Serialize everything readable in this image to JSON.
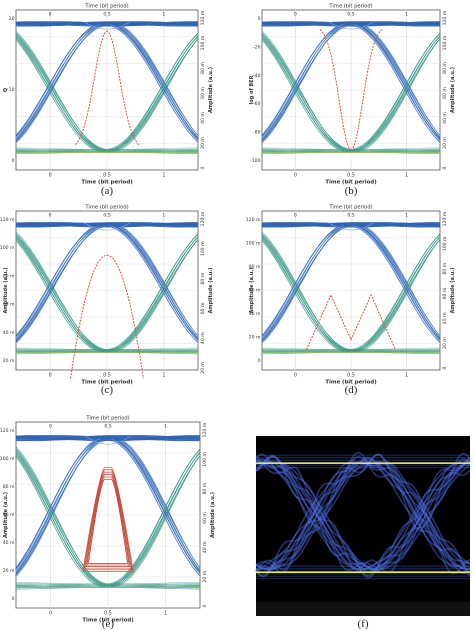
{
  "chart_data": [
    {
      "type": "line",
      "caption": "(a)",
      "top_title": "Time (bit period)",
      "xlabel": "Time (bit period)",
      "ylabel": "Q",
      "right_label": "Amplitude (a.u.)",
      "x_ticks": [
        "0",
        "0.5",
        "1"
      ],
      "top_ticks": [
        "0",
        "0.5",
        "1"
      ],
      "left_ticks": [
        "20",
        "10",
        "0"
      ],
      "right_ticks": [
        "120 m",
        "100 m",
        "80 m",
        "60 m",
        "40 m",
        "20 m",
        "0"
      ],
      "overlay": "q"
    },
    {
      "type": "line",
      "caption": "(b)",
      "top_title": "Time (bit period)",
      "xlabel": "Time (bit period)",
      "ylabel": "log of BER",
      "right_label": "Amplitude (a.u.)",
      "x_ticks": [
        "0",
        "0.5",
        "1"
      ],
      "top_ticks": [
        "0",
        "0.5",
        "1"
      ],
      "left_ticks": [
        "0",
        "-20",
        "-40",
        "-60",
        "-80",
        "-100"
      ],
      "right_ticks": [
        "120 m",
        "100 m",
        "80 m",
        "60 m",
        "40 m",
        "20 m",
        "0"
      ],
      "overlay": "ber"
    },
    {
      "type": "line",
      "caption": "(c)",
      "top_title": "Time (bit period)",
      "xlabel": "Time (bit period)",
      "ylabel": "Amplitude (a.u.)",
      "right_label": "Amplitude (a.u.)",
      "x_ticks": [
        "0",
        "0.5",
        "1"
      ],
      "top_ticks": [
        "0",
        "0.5",
        "1"
      ],
      "left_ticks": [
        "120 m",
        "100 m",
        "80 m",
        "60 m",
        "40 m",
        "20 m"
      ],
      "right_ticks": [
        "120 m",
        "100 m",
        "80 m",
        "60 m",
        "40 m",
        "20 m"
      ],
      "overlay": "height"
    },
    {
      "type": "line",
      "caption": "(d)",
      "top_title": "Time (bit period)",
      "xlabel": "Time (bit period)",
      "ylabel": "Amplitude (a.u.)",
      "right_label": "Amplitude (a.u.)",
      "x_ticks": [
        "0",
        "0.5",
        "1"
      ],
      "top_ticks": [
        "0",
        "0.5",
        "1"
      ],
      "left_ticks": [
        "120 m",
        "100 m",
        "80 m",
        "60 m",
        "40 m",
        "20 m",
        "0"
      ],
      "right_ticks": [
        "120 m",
        "100 m",
        "80 m",
        "60 m",
        "40 m",
        "20 m",
        "0"
      ],
      "overlay": "threshold"
    },
    {
      "type": "line",
      "caption": "(e)",
      "top_title": "Time (bit period)",
      "xlabel": "Time (bit period)",
      "ylabel": "Amplitude (a.u.)",
      "right_label": "Amplitude (a.u.)",
      "x_ticks": [
        "0",
        "0.5",
        "1"
      ],
      "top_ticks": [
        "0",
        "0.5",
        "1"
      ],
      "left_ticks": [
        "120 m",
        "100 m",
        "80 m",
        "60 m",
        "40 m",
        "20 m",
        "0"
      ],
      "right_ticks": [
        "120 m",
        "100 m",
        "80 m",
        "60 m",
        "40 m",
        "20 m",
        "0"
      ],
      "overlay": "contour"
    }
  ],
  "photo": {
    "caption": "(f)"
  },
  "colors": {
    "eye": "#2f64b4",
    "eye_light": "#7aa5dd",
    "cross": "#3c9a8a",
    "floor": "#8cc04a",
    "overlay": "#d9503a",
    "scope_bg": "#000000",
    "scope_trace": "#4f6fe8",
    "scope_level": "#e8e44a"
  }
}
